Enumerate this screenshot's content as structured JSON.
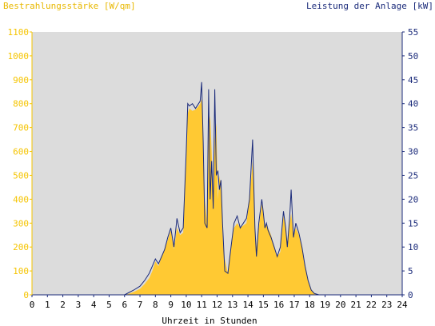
{
  "chart_data": {
    "type": "area",
    "left_axis_title": "Bestrahlungsstärke [W/qm]",
    "right_axis_title": "Leistung der Anlage [kW]",
    "xlabel": "Uhrzeit in Stunden",
    "x_ticks": [
      "0",
      "1",
      "2",
      "3",
      "4",
      "5",
      "6",
      "7",
      "8",
      "9",
      "10",
      "11",
      "12",
      "13",
      "14",
      "15",
      "16",
      "17",
      "18",
      "19",
      "20",
      "21",
      "22",
      "23",
      "24"
    ],
    "y_left_ticks": [
      "0",
      "100",
      "200",
      "300",
      "400",
      "500",
      "600",
      "700",
      "800",
      "900",
      "1000",
      "1100"
    ],
    "y_right_ticks": [
      "0",
      "5",
      "10",
      "15",
      "20",
      "25",
      "30",
      "35",
      "40",
      "45",
      "50",
      "55"
    ],
    "xlim": [
      0,
      24
    ],
    "ylim_left": [
      0,
      1100
    ],
    "ylim_right": [
      0,
      55
    ],
    "colors": {
      "plot_background": "#dcdcdc",
      "irradiance_fill": "#ffc933",
      "power_line": "#1a2a7a",
      "left_axis_text": "#f5c400",
      "right_axis_text": "#1a2a7a"
    },
    "series": [
      {
        "axis": "left",
        "style": "filled-area",
        "x": [
          0,
          6.0,
          6.3,
          6.6,
          7.0,
          7.3,
          7.6,
          7.8,
          8.0,
          8.2,
          8.4,
          8.6,
          8.8,
          9.0,
          9.2,
          9.4,
          9.6,
          9.8,
          10.0,
          10.1,
          10.2,
          10.4,
          10.6,
          10.8,
          10.9,
          11.0,
          11.1,
          11.2,
          11.35,
          11.45,
          11.55,
          11.65,
          11.75,
          11.85,
          11.95,
          12.05,
          12.15,
          12.25,
          12.35,
          12.5,
          12.7,
          12.9,
          13.1,
          13.3,
          13.5,
          13.7,
          13.9,
          14.1,
          14.3,
          14.45,
          14.55,
          14.7,
          14.9,
          15.0,
          15.1,
          15.2,
          15.3,
          15.5,
          15.7,
          15.9,
          16.1,
          16.3,
          16.45,
          16.55,
          16.7,
          16.8,
          16.95,
          17.1,
          17.3,
          17.5,
          17.7,
          17.9,
          18.1,
          18.3,
          18.6,
          24
        ],
        "values": [
          0,
          0,
          5,
          12,
          25,
          45,
          70,
          100,
          140,
          120,
          160,
          190,
          230,
          270,
          190,
          280,
          250,
          260,
          560,
          760,
          780,
          770,
          775,
          790,
          800,
          820,
          650,
          400,
          300,
          700,
          750,
          600,
          400,
          650,
          720,
          400,
          500,
          450,
          250,
          150,
          90,
          200,
          280,
          300,
          280,
          290,
          300,
          400,
          560,
          300,
          200,
          280,
          380,
          340,
          280,
          300,
          280,
          250,
          200,
          160,
          180,
          330,
          280,
          220,
          300,
          340,
          250,
          280,
          250,
          200,
          120,
          60,
          20,
          5,
          0,
          0
        ]
      },
      {
        "axis": "right",
        "style": "line",
        "x": [
          0,
          6.0,
          6.3,
          6.6,
          7.0,
          7.3,
          7.6,
          7.8,
          8.0,
          8.2,
          8.4,
          8.6,
          8.8,
          9.0,
          9.2,
          9.4,
          9.6,
          9.8,
          10.0,
          10.1,
          10.2,
          10.4,
          10.6,
          10.8,
          10.9,
          11.0,
          11.1,
          11.2,
          11.35,
          11.45,
          11.55,
          11.65,
          11.75,
          11.85,
          11.95,
          12.05,
          12.15,
          12.25,
          12.35,
          12.5,
          12.7,
          12.9,
          13.1,
          13.3,
          13.5,
          13.7,
          13.9,
          14.1,
          14.3,
          14.45,
          14.55,
          14.7,
          14.9,
          15.0,
          15.1,
          15.2,
          15.3,
          15.5,
          15.7,
          15.9,
          16.1,
          16.3,
          16.45,
          16.55,
          16.7,
          16.8,
          16.95,
          17.1,
          17.3,
          17.5,
          17.7,
          17.9,
          18.1,
          18.3,
          18.6,
          24
        ],
        "values": [
          0,
          0,
          0.5,
          1.0,
          1.8,
          3.0,
          4.5,
          6.0,
          7.5,
          6.5,
          8.0,
          9.5,
          12.0,
          14.0,
          10.0,
          16.0,
          13.0,
          14.0,
          30.0,
          40.0,
          39.5,
          40.0,
          39.0,
          40.0,
          40.5,
          44.5,
          32.0,
          15.0,
          14.0,
          43.0,
          20.0,
          28.0,
          18.0,
          43.0,
          25.0,
          26.0,
          22.0,
          24.0,
          15.0,
          5.0,
          4.5,
          10.0,
          15.0,
          16.5,
          14.0,
          15.0,
          16.0,
          20.0,
          32.5,
          14.0,
          8.0,
          15.0,
          20.0,
          17.0,
          14.0,
          15.0,
          13.5,
          12.0,
          10.0,
          8.0,
          10.0,
          17.5,
          14.0,
          10.0,
          16.0,
          22.0,
          12.0,
          15.0,
          13.0,
          10.0,
          6.0,
          3.0,
          1.0,
          0.3,
          0,
          0
        ]
      }
    ]
  }
}
